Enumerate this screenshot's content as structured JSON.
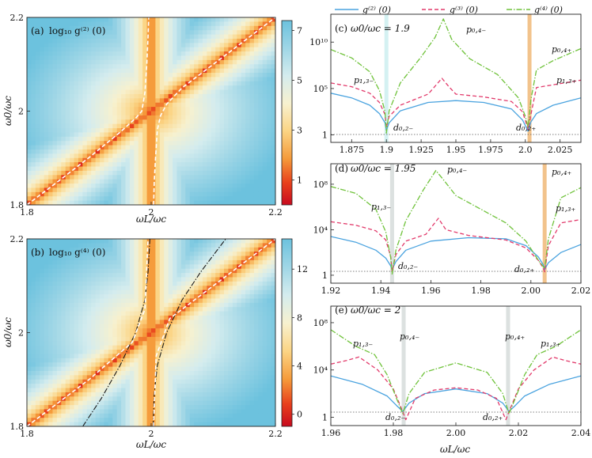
{
  "chart_data": [
    {
      "type": "heatmap",
      "id": "a",
      "panel_label": "(a)",
      "title": "log₁₀ g⁽²⁾ (0)",
      "xlabel": "ωL/ωc",
      "ylabel": "ω0/ωc",
      "xlim": [
        1.8,
        2.2
      ],
      "ylim": [
        1.8,
        2.2
      ],
      "xticks": [
        "1.8",
        "2",
        "2.2"
      ],
      "yticks": [
        "1.8",
        "2",
        "2.2"
      ],
      "colorbar": {
        "min": 0,
        "max": 7.4,
        "ticks": [
          "1",
          "3",
          "5",
          "7"
        ],
        "tick_values": [
          1,
          3,
          5,
          7
        ]
      },
      "curves": [
        {
          "name": "antiresonance-dashed",
          "style": "white-dashed",
          "x": [
            1.8,
            1.85,
            1.9,
            1.95,
            1.975,
            1.985,
            1.99,
            1.993,
            1.995,
            1.996
          ],
          "y": [
            1.8,
            1.85,
            1.901,
            1.955,
            1.985,
            2.0,
            2.04,
            2.1,
            2.16,
            2.2
          ]
        },
        {
          "name": "antiresonance-dashed-2",
          "style": "white-dashed",
          "x": [
            2.004,
            2.005,
            2.007,
            2.01,
            2.015,
            2.025,
            2.05,
            2.1,
            2.15,
            2.2
          ],
          "y": [
            1.8,
            1.85,
            1.9,
            1.96,
            1.99,
            2.015,
            2.05,
            2.1,
            2.15,
            2.2
          ]
        }
      ]
    },
    {
      "type": "heatmap",
      "id": "b",
      "panel_label": "(b)",
      "title": "log₁₀ g⁽⁴⁾ (0)",
      "xlabel": "ωL/ωc",
      "ylabel": "ω0/ωc",
      "xlim": [
        1.8,
        2.2
      ],
      "ylim": [
        1.8,
        2.2
      ],
      "xticks": [
        "1.8",
        "2",
        "2.2"
      ],
      "yticks": [
        "1.8",
        "2",
        "2.2"
      ],
      "colorbar": {
        "min": -1,
        "max": 14.5,
        "ticks": [
          "0",
          "4",
          "8",
          "12"
        ],
        "tick_values": [
          0,
          4,
          8,
          12
        ]
      },
      "curves": [
        {
          "name": "dark-dashdot-1",
          "style": "black-dashdot",
          "x": [
            1.89,
            1.92,
            1.95,
            1.975,
            1.99,
            1.995,
            1.998
          ],
          "y": [
            1.8,
            1.86,
            1.93,
            2.0,
            2.07,
            2.13,
            2.2
          ]
        },
        {
          "name": "dark-dashdot-2",
          "style": "black-dashdot",
          "x": [
            2.003,
            2.005,
            2.01,
            2.025,
            2.05,
            2.08,
            2.12
          ],
          "y": [
            1.8,
            1.87,
            1.93,
            2.0,
            2.07,
            2.13,
            2.2
          ]
        },
        {
          "name": "white-dashed-1",
          "style": "white-dashed",
          "x": [
            1.8,
            1.9,
            1.97,
            1.99,
            1.995
          ],
          "y": [
            1.8,
            1.9,
            1.98,
            2.05,
            2.2
          ]
        },
        {
          "name": "white-dashed-2",
          "style": "white-dashed",
          "x": [
            2.004,
            2.008,
            2.03,
            2.1,
            2.2
          ],
          "y": [
            1.8,
            1.95,
            2.03,
            2.1,
            2.2
          ]
        }
      ]
    },
    {
      "type": "line",
      "id": "c",
      "panel_label": "(c)",
      "title": "ω0/ωc = 1.9",
      "xlim": [
        1.86,
        2.04
      ],
      "xticks": [
        "1.875",
        "1.9",
        "1.925",
        "1.95",
        "1.975",
        "2.0",
        "2.025"
      ],
      "xtick_values": [
        1.875,
        1.9,
        1.925,
        1.95,
        1.975,
        2.0,
        2.025
      ],
      "yscale": "log",
      "ylim_log10": [
        -0.8,
        13.0
      ],
      "yticks": [
        "1",
        "10⁵",
        "10¹⁰"
      ],
      "ytick_values_log10": [
        0,
        5,
        10
      ],
      "highlight_bands": [
        {
          "x": 1.9,
          "color": "#cdeef0"
        },
        {
          "x": 2.003,
          "color": "#f0b878"
        }
      ],
      "annotations": [
        "p₀,₄₋",
        "p₀,₄₊",
        "p₁,₃₋",
        "p₁,₃₊",
        "d₀,₂₋",
        "d₀,₂₊"
      ],
      "series": [
        {
          "name": "g⁽²⁾ (0)",
          "color": "#4aa3df",
          "x": [
            1.86,
            1.875,
            1.888,
            1.895,
            1.899,
            1.9,
            1.902,
            1.91,
            1.93,
            1.95,
            1.97,
            1.99,
            1.998,
            2.002,
            2.004,
            2.008,
            2.02,
            2.04
          ],
          "log10y": [
            4.5,
            4.0,
            3.2,
            2.3,
            1.3,
            0.5,
            1.3,
            2.6,
            3.5,
            3.7,
            3.5,
            2.8,
            1.6,
            0.4,
            1.4,
            2.3,
            3.2,
            4.0
          ]
        },
        {
          "name": "g⁽³⁾ (0)",
          "color": "#e23a6b",
          "x": [
            1.86,
            1.875,
            1.888,
            1.895,
            1.899,
            1.9,
            1.902,
            1.91,
            1.93,
            1.94,
            1.945,
            1.95,
            1.97,
            1.99,
            1.998,
            2.002,
            2.004,
            2.008,
            2.02,
            2.04
          ],
          "log10y": [
            5.6,
            5.2,
            4.5,
            3.5,
            2.2,
            0.8,
            2.0,
            3.2,
            4.4,
            6.1,
            5.2,
            4.4,
            4.1,
            3.6,
            2.5,
            0.6,
            2.2,
            5.1,
            5.4,
            5.9
          ]
        },
        {
          "name": "g⁽⁴⁾ (0)",
          "color": "#6fc23a",
          "x": [
            1.86,
            1.875,
            1.888,
            1.895,
            1.899,
            1.9,
            1.902,
            1.91,
            1.925,
            1.935,
            1.941,
            1.947,
            1.96,
            1.98,
            1.995,
            2.0,
            2.002,
            2.004,
            2.008,
            2.02,
            2.04
          ],
          "log10y": [
            9.2,
            8.3,
            6.8,
            4.8,
            2.5,
            0.2,
            2.6,
            5.6,
            8.4,
            10.5,
            12.5,
            10.3,
            8.2,
            6.5,
            4.0,
            2.0,
            0.8,
            3.8,
            7.0,
            8.0,
            9.3
          ]
        }
      ]
    },
    {
      "type": "line",
      "id": "d",
      "panel_label": "(d)",
      "title": "ω0/ωc = 1.95",
      "xlim": [
        1.92,
        2.02
      ],
      "xticks": [
        "1.92",
        "1.94",
        "1.96",
        "1.98",
        "2.00",
        "2.02"
      ],
      "xtick_values": [
        1.92,
        1.94,
        1.96,
        1.98,
        2.0,
        2.02
      ],
      "yscale": "log",
      "ylim_log10": [
        -0.7,
        9.8
      ],
      "yticks": [
        "1",
        "10⁴",
        "10⁸"
      ],
      "ytick_values_log10": [
        0,
        4,
        8
      ],
      "highlight_bands": [
        {
          "x": 1.9445,
          "color": "#d6dcda"
        },
        {
          "x": 2.0055,
          "color": "#f0b878"
        }
      ],
      "annotations": [
        "p₀,₄₋",
        "p₀,₄₊",
        "p₁,₃₋",
        "p₁,₃₊",
        "d₀,₂₋",
        "d₀,₂₊"
      ],
      "series": [
        {
          "name": "g⁽²⁾ (0)",
          "color": "#4aa3df",
          "x": [
            1.92,
            1.93,
            1.938,
            1.942,
            1.944,
            1.9445,
            1.946,
            1.95,
            1.96,
            1.975,
            1.99,
            1.998,
            2.003,
            2.005,
            2.0055,
            2.007,
            2.012,
            2.02
          ],
          "log10y": [
            3.4,
            2.9,
            2.2,
            1.5,
            0.8,
            0.5,
            1.2,
            2.2,
            3.0,
            3.3,
            3.2,
            2.6,
            1.6,
            0.9,
            0.5,
            1.1,
            2.0,
            2.7
          ]
        },
        {
          "name": "g⁽³⁾ (0)",
          "color": "#e23a6b",
          "x": [
            1.92,
            1.93,
            1.938,
            1.942,
            1.944,
            1.9445,
            1.946,
            1.95,
            1.958,
            1.963,
            1.966,
            1.975,
            1.99,
            1.998,
            2.003,
            2.005,
            2.0055,
            2.007,
            2.012,
            2.02
          ],
          "log10y": [
            4.7,
            4.4,
            3.9,
            3.1,
            1.6,
            0.3,
            1.8,
            3.0,
            3.6,
            5.0,
            4.0,
            3.5,
            3.1,
            2.4,
            1.3,
            0.6,
            0.3,
            2.6,
            4.6,
            4.9
          ]
        },
        {
          "name": "g⁽⁴⁾ (0)",
          "color": "#6fc23a",
          "x": [
            1.92,
            1.93,
            1.938,
            1.942,
            1.944,
            1.9445,
            1.946,
            1.95,
            1.957,
            1.962,
            1.965,
            1.97,
            1.98,
            1.99,
            1.998,
            2.003,
            2.0055,
            2.007,
            2.012,
            2.02
          ],
          "log10y": [
            7.8,
            7.2,
            5.8,
            3.8,
            1.5,
            0.1,
            2.2,
            4.8,
            7.5,
            9.2,
            8.4,
            7.0,
            5.8,
            4.6,
            3.0,
            1.3,
            0.6,
            3.2,
            6.8,
            7.7
          ]
        }
      ]
    },
    {
      "type": "line",
      "id": "e",
      "panel_label": "(e)",
      "title": "ω0/ωc = 2",
      "xlabel": "ωL/ωc",
      "xlim": [
        1.96,
        2.04
      ],
      "xticks": [
        "1.96",
        "1.98",
        "2.00",
        "2.02",
        "2.04"
      ],
      "xtick_values": [
        1.96,
        1.98,
        2.0,
        2.02,
        2.04
      ],
      "yscale": "log",
      "ylim_log10": [
        -0.7,
        9.4
      ],
      "yticks": [
        "1",
        "10⁴",
        "10⁸"
      ],
      "ytick_values_log10": [
        0,
        4,
        8
      ],
      "highlight_bands": [
        {
          "x": 1.9833,
          "color": "#d6dcda"
        },
        {
          "x": 2.0167,
          "color": "#d6dcda"
        }
      ],
      "annotations": [
        "p₀,₄₋",
        "p₀,₄₊",
        "p₁,₃₋",
        "p₁,₃₊",
        "d₀,₂₋",
        "d₀,₂₊"
      ],
      "series": [
        {
          "name": "g⁽²⁾ (0)",
          "color": "#4aa3df",
          "x": [
            1.96,
            1.97,
            1.978,
            1.981,
            1.983,
            1.985,
            1.99,
            2.0,
            2.01,
            2.015,
            2.017,
            2.019,
            2.022,
            2.03,
            2.04
          ],
          "log10y": [
            3.5,
            2.8,
            1.8,
            1.0,
            0.5,
            1.2,
            2.0,
            2.4,
            2.0,
            1.2,
            0.5,
            1.0,
            1.8,
            2.8,
            3.5
          ]
        },
        {
          "name": "g⁽³⁾ (0)",
          "color": "#e23a6b",
          "x": [
            1.96,
            1.965,
            1.969,
            1.975,
            1.98,
            1.9825,
            1.984,
            1.987,
            1.993,
            2.0,
            2.007,
            2.013,
            2.016,
            2.0175,
            2.02,
            2.025,
            2.031,
            2.035,
            2.04
          ],
          "log10y": [
            4.5,
            4.8,
            5.1,
            4.0,
            2.4,
            0.8,
            -0.2,
            1.6,
            2.3,
            2.5,
            2.3,
            1.6,
            -0.2,
            0.8,
            2.4,
            4.0,
            5.1,
            4.8,
            4.5
          ]
        },
        {
          "name": "g⁽⁴⁾ (0)",
          "color": "#6fc23a",
          "x": [
            1.96,
            1.968,
            1.974,
            1.978,
            1.981,
            1.983,
            1.985,
            1.99,
            2.0,
            2.01,
            2.015,
            2.017,
            2.019,
            2.022,
            2.026,
            2.032,
            2.04
          ],
          "log10y": [
            7.4,
            6.0,
            5.3,
            3.6,
            1.6,
            0.3,
            2.0,
            3.8,
            4.6,
            3.8,
            2.0,
            0.3,
            1.6,
            3.6,
            5.3,
            6.0,
            7.4
          ]
        }
      ]
    }
  ],
  "legend": {
    "entries": [
      {
        "label": "g⁽²⁾ (0)",
        "color": "#4aa3df",
        "style": "solid"
      },
      {
        "label": "g⁽³⁾ (0)",
        "color": "#e23a6b",
        "style": "dashed"
      },
      {
        "label": "g⁽⁴⁾ (0)",
        "color": "#6fc23a",
        "style": "dashdot"
      }
    ]
  },
  "labels": {
    "heatmap_xlabel": "ωL/ωc",
    "heatmap_ylabel": "ω0/ωc",
    "line_xlabel": "ωL/ωc"
  }
}
